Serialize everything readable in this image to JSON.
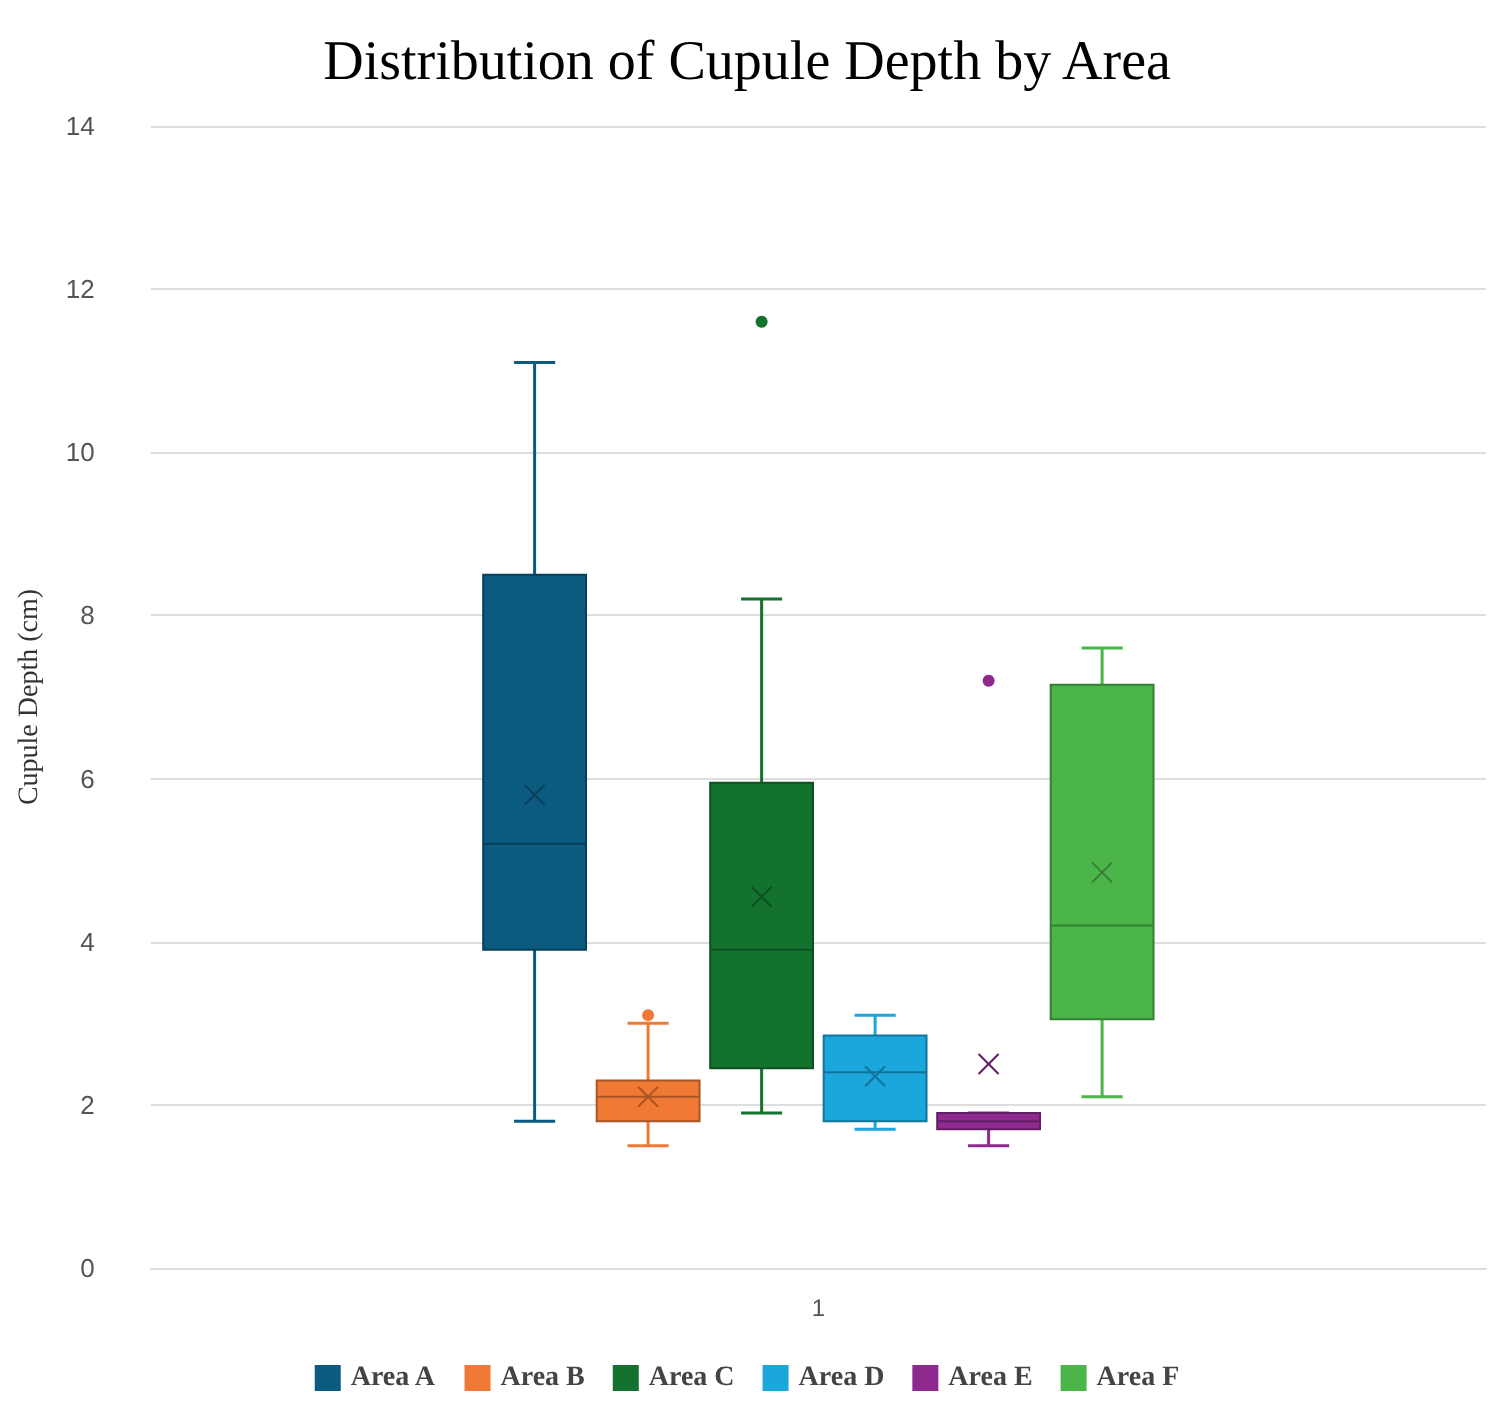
{
  "chart_data": {
    "type": "box",
    "title": "Distribution of Cupule Depth by Area",
    "ylabel": "Cupule Depth (cm)",
    "categories": [
      "1"
    ],
    "series": [
      {
        "name": "Area A",
        "color": "#0b5a7f",
        "boxes": [
          {
            "low": 1.8,
            "q1": 3.9,
            "median": 5.2,
            "q3": 8.5,
            "high": 11.1,
            "mean": 5.8
          }
        ]
      },
      {
        "name": "Area B",
        "color": "#f07a35",
        "boxes": [
          {
            "low": 1.5,
            "q1": 1.8,
            "median": 2.1,
            "q3": 2.3,
            "high": 3.0,
            "mean": 2.1,
            "outliers": [
              3.1
            ]
          }
        ]
      },
      {
        "name": "Area C",
        "color": "#14722f",
        "boxes": [
          {
            "low": 1.9,
            "q1": 2.45,
            "median": 3.9,
            "q3": 5.95,
            "high": 8.2,
            "mean": 4.55,
            "outliers": [
              11.6
            ]
          }
        ]
      },
      {
        "name": "Area D",
        "color": "#1ba6dc",
        "boxes": [
          {
            "low": 1.7,
            "q1": 1.8,
            "median": 2.4,
            "q3": 2.85,
            "high": 3.1,
            "mean": 2.35
          }
        ]
      },
      {
        "name": "Area E",
        "color": "#8e2a8e",
        "boxes": [
          {
            "low": 1.5,
            "q1": 1.7,
            "median": 1.8,
            "q3": 1.9,
            "high": 1.9,
            "mean": 2.5,
            "outliers": [
              7.2
            ]
          }
        ]
      },
      {
        "name": "Area F",
        "color": "#4bb54a",
        "boxes": [
          {
            "low": 2.1,
            "q1": 3.05,
            "median": 4.2,
            "q3": 7.15,
            "high": 7.6,
            "mean": 4.85
          }
        ]
      }
    ],
    "ylim": [
      0,
      14
    ],
    "yticks": [
      0,
      2,
      4,
      6,
      8,
      10,
      12,
      14
    ],
    "grid": "y",
    "legend": "bottom"
  }
}
